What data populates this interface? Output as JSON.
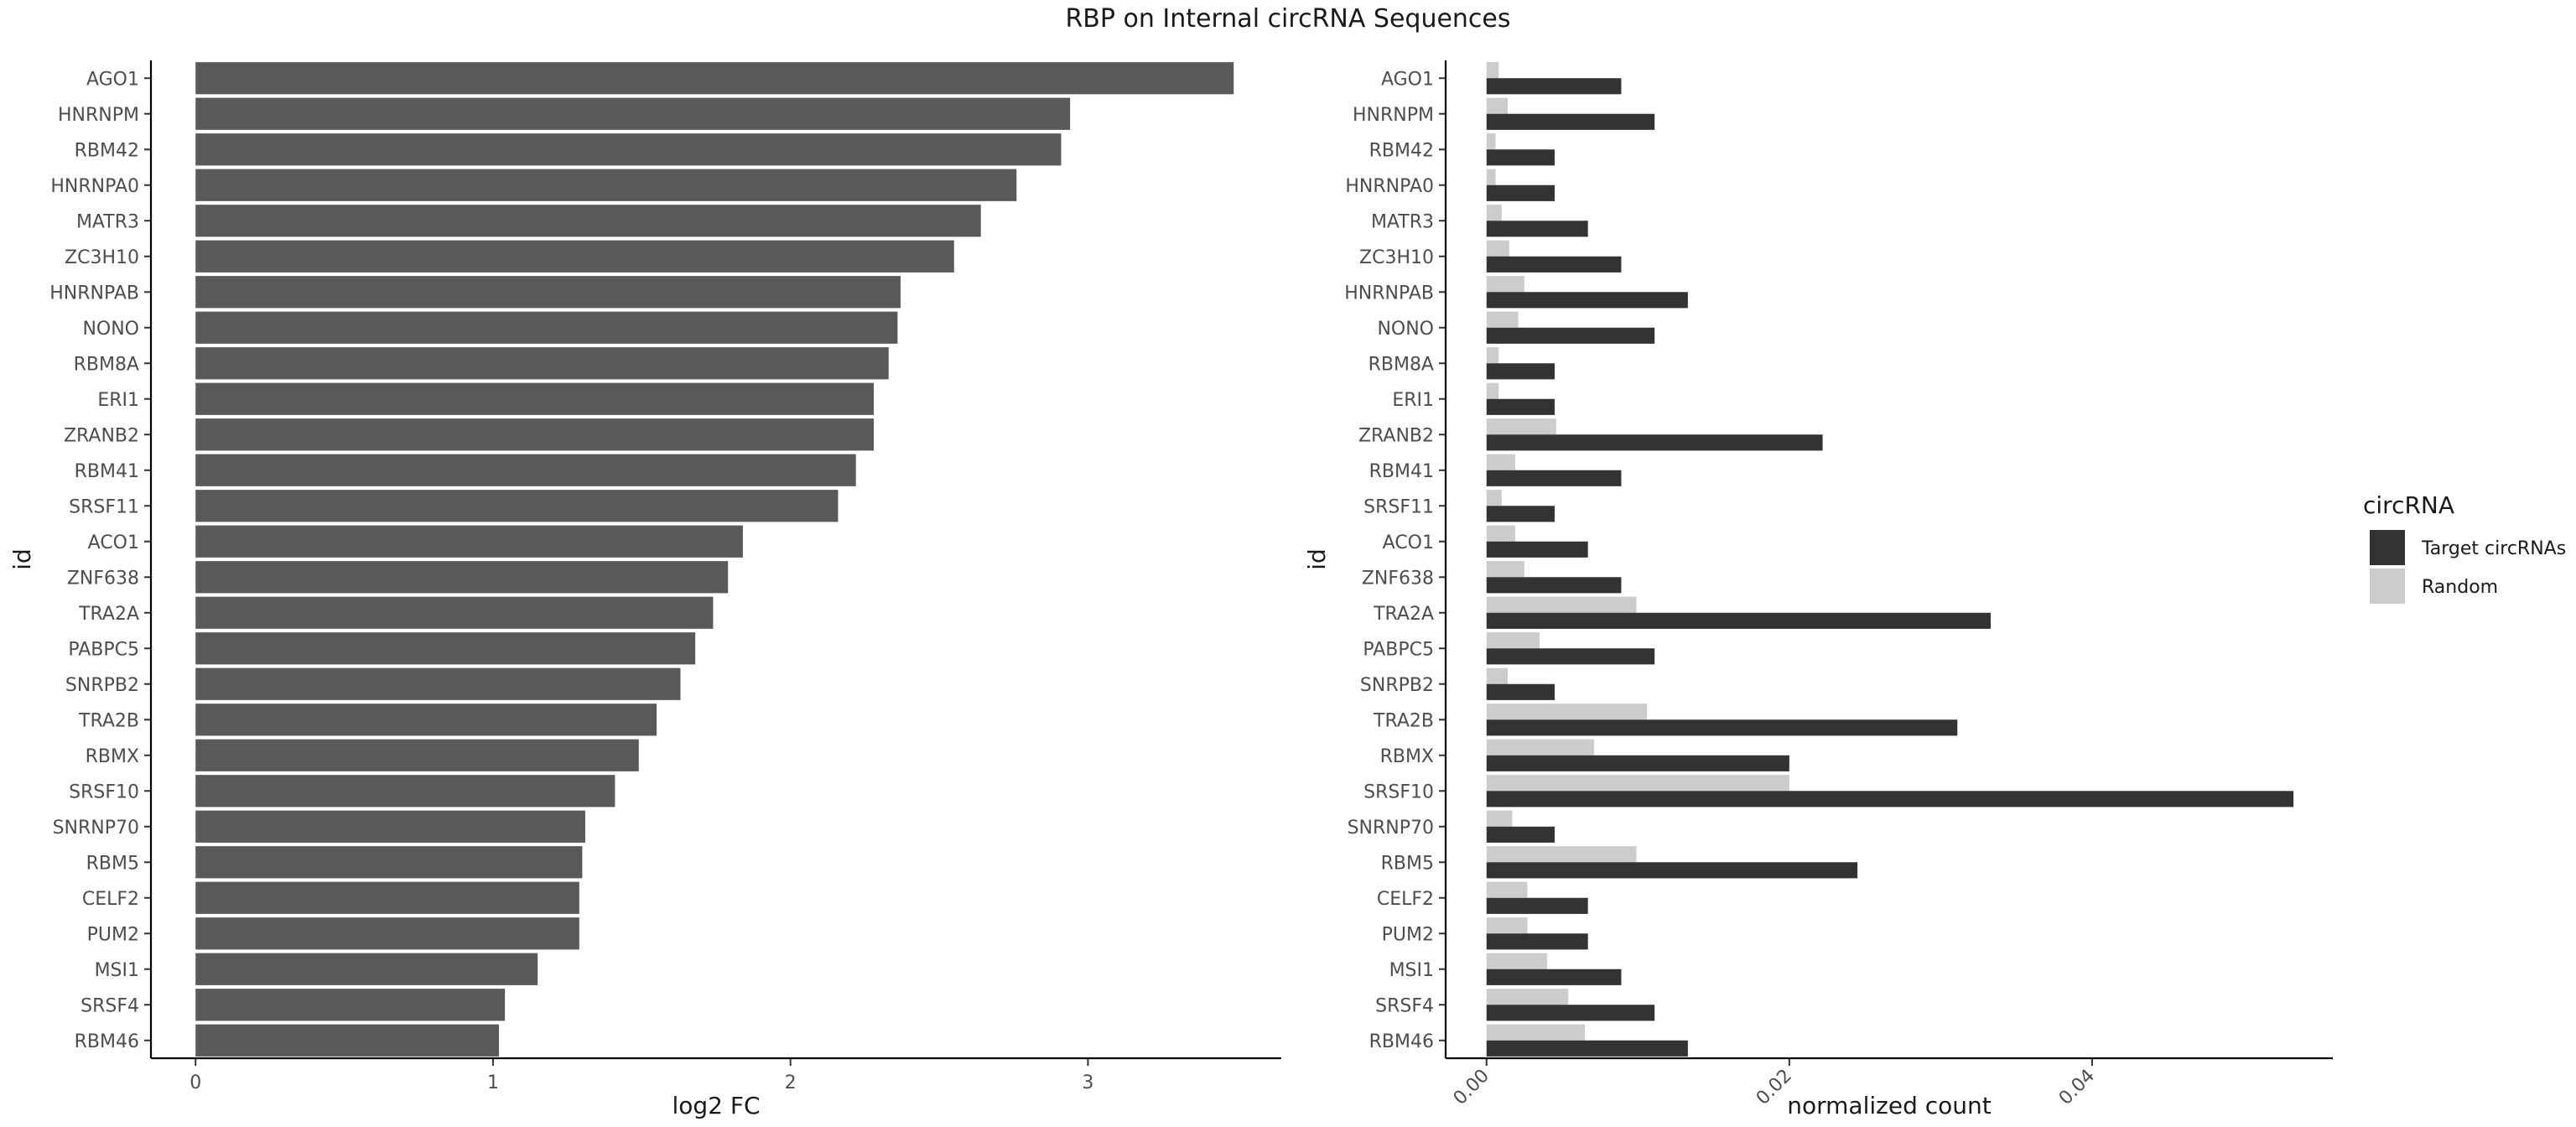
{
  "chart_data": [
    {
      "type": "bar",
      "orientation": "horizontal",
      "title": "RBP on Internal circRNA Sequences",
      "xlabel": "log2 FC",
      "ylabel": "id",
      "xlim": [
        -0.15,
        3.65
      ],
      "xticks": [
        0,
        1,
        2,
        3
      ],
      "color": "#595959",
      "categories": [
        "AGO1",
        "HNRNPM",
        "RBM42",
        "HNRNPA0",
        "MATR3",
        "ZC3H10",
        "HNRNPAB",
        "NONO",
        "RBM8A",
        "ERI1",
        "ZRANB2",
        "RBM41",
        "SRSF11",
        "ACO1",
        "ZNF638",
        "TRA2A",
        "PABPC5",
        "SNRPB2",
        "TRA2B",
        "RBMX",
        "SRSF10",
        "SNRNP70",
        "RBM5",
        "CELF2",
        "PUM2",
        "MSI1",
        "SRSF4",
        "RBM46"
      ],
      "values": [
        3.49,
        2.94,
        2.91,
        2.76,
        2.64,
        2.55,
        2.37,
        2.36,
        2.33,
        2.28,
        2.28,
        2.22,
        2.16,
        1.84,
        1.79,
        1.74,
        1.68,
        1.63,
        1.55,
        1.49,
        1.41,
        1.31,
        1.3,
        1.29,
        1.29,
        1.15,
        1.04,
        1.02
      ]
    },
    {
      "type": "bar",
      "orientation": "horizontal",
      "xlabel": "normalized count",
      "ylabel": "id",
      "xlim": [
        -0.0027,
        0.0559
      ],
      "xticks": [
        "0.00",
        "0.02",
        "0.04"
      ],
      "categories": [
        "AGO1",
        "HNRNPM",
        "RBM42",
        "HNRNPA0",
        "MATR3",
        "ZC3H10",
        "HNRNPAB",
        "NONO",
        "RBM8A",
        "ERI1",
        "ZRANB2",
        "RBM41",
        "SRSF11",
        "ACO1",
        "ZNF638",
        "TRA2A",
        "PABPC5",
        "SNRPB2",
        "TRA2B",
        "RBMX",
        "SRSF10",
        "SNRNP70",
        "RBM5",
        "CELF2",
        "PUM2",
        "MSI1",
        "SRSF4",
        "RBM46"
      ],
      "legend_title": "circRNA",
      "legend_position": "right",
      "series": [
        {
          "name": "Target circRNAs",
          "color": "#333333",
          "values": [
            0.0089,
            0.0111,
            0.0045,
            0.0045,
            0.0067,
            0.0089,
            0.0133,
            0.0111,
            0.0045,
            0.0045,
            0.0222,
            0.0089,
            0.0045,
            0.0067,
            0.0089,
            0.0333,
            0.0111,
            0.0045,
            0.0311,
            0.02,
            0.0533,
            0.0045,
            0.0245,
            0.0067,
            0.0067,
            0.0089,
            0.0111,
            0.0133
          ]
        },
        {
          "name": "Random",
          "color": "#cccccc",
          "values": [
            0.0008,
            0.0014,
            0.0006,
            0.0006,
            0.001,
            0.0015,
            0.0025,
            0.0021,
            0.0008,
            0.0008,
            0.0046,
            0.0019,
            0.001,
            0.0019,
            0.0025,
            0.0099,
            0.0035,
            0.0014,
            0.0106,
            0.0071,
            0.02,
            0.0017,
            0.0099,
            0.0027,
            0.0027,
            0.004,
            0.0054,
            0.0065
          ]
        }
      ]
    }
  ]
}
